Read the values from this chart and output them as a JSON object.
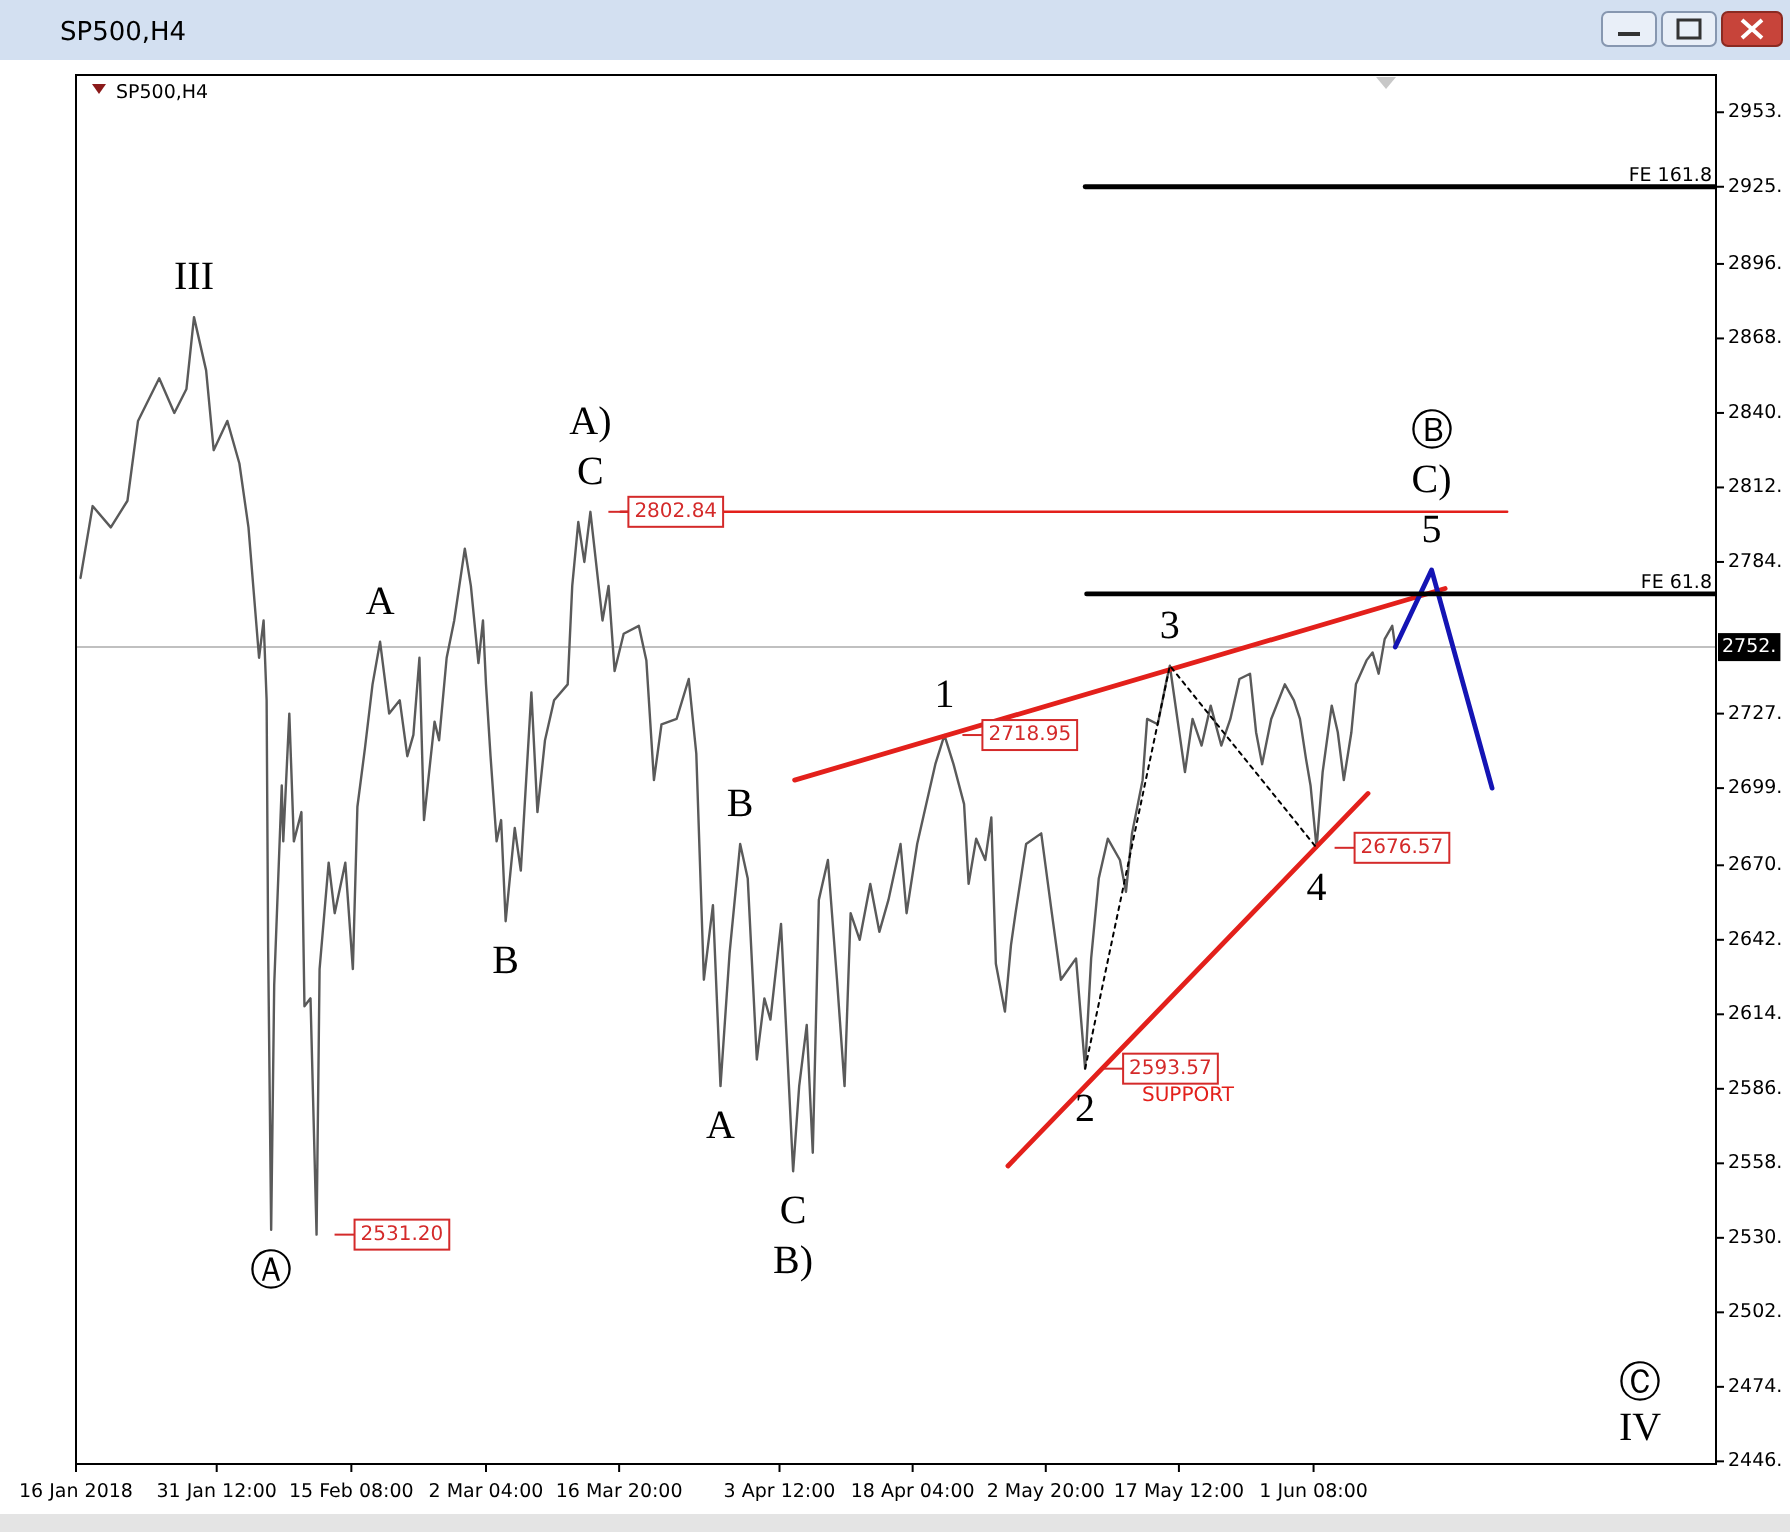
{
  "chart_data": {
    "type": "line",
    "title": "SP500,H4",
    "subtitle": "SP500,H4",
    "legend": "right",
    "xlim": [
      "2018-01-16T00:00",
      "2018-07-15T16:00"
    ],
    "xticks": [
      {
        "value": "2018-01-16T00:00",
        "label": "16 Jan 2018"
      },
      {
        "value": "2018-01-31T12:00",
        "label": "31 Jan 12:00"
      },
      {
        "value": "2018-02-15T08:00",
        "label": "15 Feb 08:00"
      },
      {
        "value": "2018-03-02T04:00",
        "label": "2 Mar 04:00"
      },
      {
        "value": "2018-03-16T20:00",
        "label": "16 Mar 20:00"
      },
      {
        "value": "2018-04-03T12:00",
        "label": "3 Apr 12:00"
      },
      {
        "value": "2018-04-18T04:00",
        "label": "18 Apr 04:00"
      },
      {
        "value": "2018-05-02T20:00",
        "label": "2 May 20:00"
      },
      {
        "value": "2018-05-17T12:00",
        "label": "17 May 12:00"
      },
      {
        "value": "2018-06-01T08:00",
        "label": "1 Jun 08:00"
      }
    ],
    "ylim": [
      2445,
      2967
    ],
    "yticks": [
      {
        "value": 2446,
        "label": "2446."
      },
      {
        "value": 2474,
        "label": "2474."
      },
      {
        "value": 2502,
        "label": "2502."
      },
      {
        "value": 2530,
        "label": "2530."
      },
      {
        "value": 2558,
        "label": "2558."
      },
      {
        "value": 2586,
        "label": "2586."
      },
      {
        "value": 2614,
        "label": "2614."
      },
      {
        "value": 2642,
        "label": "2642."
      },
      {
        "value": 2670,
        "label": "2670."
      },
      {
        "value": 2699,
        "label": "2699."
      },
      {
        "value": 2727,
        "label": "2727."
      },
      {
        "value": 2784,
        "label": "2784."
      },
      {
        "value": 2812,
        "label": "2812."
      },
      {
        "value": 2840,
        "label": "2840."
      },
      {
        "value": 2868,
        "label": "2868."
      },
      {
        "value": 2896,
        "label": "2896."
      },
      {
        "value": 2925,
        "label": "2925."
      },
      {
        "value": 2953,
        "label": "2953."
      }
    ],
    "series": [
      {
        "color": "#5a5a5a",
        "x": [
          "2018-01-16T12:00",
          "2018-01-17T20:00",
          "2018-01-19T20:00",
          "2018-01-21T16:00",
          "2018-01-22T20:00",
          "2018-01-25T04:00",
          "2018-01-26T20:00",
          "2018-01-28T04:00",
          "2018-01-29T00:00",
          "2018-01-30T08:00",
          "2018-01-31T04:00",
          "2018-02-01T16:00",
          "2018-02-03T00:00",
          "2018-02-04T00:00",
          "2018-02-04T20:00",
          "2018-02-05T04:00",
          "2018-02-05T16:00",
          "2018-02-06T00:00",
          "2018-02-06T04:00",
          "2018-02-06T12:00",
          "2018-02-06T20:00",
          "2018-02-07T16:00",
          "2018-02-07T20:00",
          "2018-02-08T12:00",
          "2018-02-09T00:00",
          "2018-02-09T20:00",
          "2018-02-10T04:00",
          "2018-02-10T20:00",
          "2018-02-11T12:00",
          "2018-02-11T20:00",
          "2018-02-12T20:00",
          "2018-02-13T12:00",
          "2018-02-14T16:00",
          "2018-02-15T12:00",
          "2018-02-16T00:00",
          "2018-02-16T20:00",
          "2018-02-17T16:00",
          "2018-02-18T12:00",
          "2018-02-19T12:00",
          "2018-02-20T16:00",
          "2018-02-21T12:00",
          "2018-02-22T04:00",
          "2018-02-22T20:00",
          "2018-02-23T08:00",
          "2018-02-24T12:00",
          "2018-02-25T00:00",
          "2018-02-25T20:00",
          "2018-02-26T16:00",
          "2018-02-27T20:00",
          "2018-02-28T12:00",
          "2018-03-01T08:00",
          "2018-03-01T20:00",
          "2018-03-02T04:00",
          "2018-03-02T16:00",
          "2018-03-03T08:00",
          "2018-03-03T20:00",
          "2018-03-04T08:00",
          "2018-03-05T08:00",
          "2018-03-06T00:00",
          "2018-03-07T04:00",
          "2018-03-07T20:00",
          "2018-03-08T16:00",
          "2018-03-09T16:00",
          "2018-03-11T04:00",
          "2018-03-11T16:00",
          "2018-03-12T08:00",
          "2018-03-13T00:00",
          "2018-03-13T16:00",
          "2018-03-15T00:00",
          "2018-03-15T16:00",
          "2018-03-16T08:00",
          "2018-03-17T08:00",
          "2018-03-19T00:00",
          "2018-03-19T20:00",
          "2018-03-20T16:00",
          "2018-03-21T12:00",
          "2018-03-23T04:00",
          "2018-03-24T12:00",
          "2018-03-25T08:00",
          "2018-03-26T04:00",
          "2018-03-27T04:00",
          "2018-03-28T00:00",
          "2018-03-29T00:00",
          "2018-03-30T04:00",
          "2018-03-31T00:00",
          "2018-04-01T00:00",
          "2018-04-01T20:00",
          "2018-04-02T12:00",
          "2018-04-03T16:00",
          "2018-04-05T00:00",
          "2018-04-05T16:00",
          "2018-04-06T12:00",
          "2018-04-07T04:00",
          "2018-04-07T20:00",
          "2018-04-08T20:00",
          "2018-04-09T20:00",
          "2018-04-10T16:00",
          "2018-04-11T08:00",
          "2018-04-12T08:00",
          "2018-04-13T12:00",
          "2018-04-14T12:00",
          "2018-04-15T12:00",
          "2018-04-16T20:00",
          "2018-04-17T12:00",
          "2018-04-18T16:00",
          "2018-04-19T16:00",
          "2018-04-20T16:00",
          "2018-04-21T16:00",
          "2018-04-22T16:00",
          "2018-04-23T20:00",
          "2018-04-24T08:00",
          "2018-04-25T04:00",
          "2018-04-26T04:00",
          "2018-04-26T20:00",
          "2018-04-27T08:00",
          "2018-04-28T08:00",
          "2018-04-29T00:00",
          "2018-04-29T12:00",
          "2018-04-30T16:00",
          "2018-05-02T08:00",
          "2018-05-03T12:00",
          "2018-05-04T12:00",
          "2018-05-06T04:00",
          "2018-05-07T04:00",
          "2018-05-07T20:00",
          "2018-05-08T16:00",
          "2018-05-09T16:00",
          "2018-05-11T00:00",
          "2018-05-11T16:00",
          "2018-05-12T08:00",
          "2018-05-13T12:00",
          "2018-05-14T00:00",
          "2018-05-15T04:00",
          "2018-05-16T04:00",
          "2018-05-16T12:00",
          "2018-05-18T04:00",
          "2018-05-19T00:00",
          "2018-05-20T00:00",
          "2018-05-21T00:00",
          "2018-05-22T04:00",
          "2018-05-23T04:00",
          "2018-05-24T04:00",
          "2018-05-25T08:00",
          "2018-05-26T00:00",
          "2018-05-26T16:00",
          "2018-05-27T16:00",
          "2018-05-29T04:00",
          "2018-05-30T04:00",
          "2018-05-30T20:00",
          "2018-05-31T12:00",
          "2018-06-01T00:00",
          "2018-06-01T16:00",
          "2018-06-02T08:00",
          "2018-06-03T08:00",
          "2018-06-04T00:00",
          "2018-06-04T16:00",
          "2018-06-05T12:00",
          "2018-06-06T00:00",
          "2018-06-07T04:00",
          "2018-06-07T20:00",
          "2018-06-08T12:00",
          "2018-06-09T04:00",
          "2018-06-10T00:00",
          "2018-06-10T08:00"
        ],
        "values": [
          2778,
          2805,
          2797,
          2807,
          2837,
          2853,
          2840,
          2849,
          2876,
          2856,
          2826,
          2837,
          2821,
          2797,
          2762,
          2748,
          2762,
          2732,
          2639,
          2533,
          2625,
          2700,
          2679,
          2727,
          2679,
          2690,
          2617,
          2620,
          2531.2,
          2631,
          2671,
          2652,
          2671,
          2631,
          2692,
          2714,
          2738,
          2754,
          2727,
          2732,
          2711,
          2719,
          2748,
          2687,
          2724,
          2717,
          2748,
          2762,
          2789,
          2775,
          2746,
          2762,
          2738,
          2711,
          2679,
          2687,
          2649,
          2684,
          2668,
          2735,
          2690,
          2717,
          2732,
          2738,
          2775,
          2799,
          2784,
          2802.84,
          2762,
          2775,
          2743,
          2757,
          2760,
          2747,
          2702,
          2723,
          2725,
          2740,
          2712,
          2627,
          2655,
          2587,
          2637,
          2678,
          2665,
          2597,
          2620,
          2612,
          2648,
          2555,
          2587,
          2610,
          2562,
          2657,
          2672,
          2627,
          2587,
          2652,
          2642,
          2663,
          2645,
          2657,
          2678,
          2652,
          2678,
          2693,
          2708,
          2718.95,
          2708,
          2693,
          2663,
          2680,
          2672,
          2688,
          2633,
          2615,
          2640,
          2652,
          2678,
          2682,
          2652,
          2627,
          2635,
          2593.57,
          2635,
          2665,
          2680,
          2672,
          2660,
          2682,
          2702,
          2725,
          2723,
          2740,
          2745,
          2705,
          2725,
          2715,
          2730,
          2715,
          2725,
          2740,
          2742,
          2720,
          2708,
          2725,
          2738,
          2732,
          2725,
          2710,
          2700,
          2676.57,
          2705,
          2730,
          2720,
          2702,
          2720,
          2738,
          2747,
          2750,
          2742,
          2755,
          2760,
          2752
        ],
        "value_labels": [
          null,
          null,
          null,
          null,
          null,
          null,
          null,
          null,
          null,
          null,
          null,
          null,
          null,
          null,
          null,
          null,
          null,
          null,
          null,
          null,
          null,
          null,
          null,
          null,
          null,
          null,
          null,
          null,
          "2531.20",
          null,
          null,
          null,
          null,
          null,
          null,
          null,
          null,
          null,
          null,
          null,
          null,
          null,
          null,
          null,
          null,
          null,
          null,
          null,
          null,
          null,
          null,
          null,
          null,
          null,
          null,
          null,
          null,
          null,
          null,
          null,
          null,
          null,
          null,
          null,
          null,
          null,
          null,
          "2802.84",
          null,
          null,
          null,
          null,
          null,
          null,
          null,
          null,
          null,
          null,
          null,
          null,
          null,
          null,
          null,
          null,
          null,
          null,
          null,
          null,
          null,
          null,
          null,
          null,
          null,
          null,
          null,
          null,
          null,
          null,
          null,
          null,
          null,
          null,
          null,
          null,
          null,
          null,
          null,
          "2718.95",
          null,
          null,
          null,
          null,
          null,
          null,
          null,
          null,
          null,
          null,
          null,
          null,
          null,
          null,
          null,
          "2593.57",
          null,
          null,
          null,
          null,
          null,
          null,
          null,
          null,
          null,
          null,
          null,
          null,
          null,
          null,
          null,
          null,
          null,
          null,
          null,
          null,
          null,
          null,
          null,
          null,
          null,
          null,
          null,
          "2676.57",
          null,
          null,
          null,
          null,
          null,
          null,
          null,
          null,
          null,
          null,
          null,
          null
        ]
      },
      {
        "color": "#e3201b",
        "x": [
          "2018-04-05T04:00",
          "2018-06-15T20:00"
        ],
        "values": [
          2702,
          2774
        ]
      },
      {
        "name": "SUPPORT",
        "color": "#e3201b",
        "x": [
          "2018-04-28T16:00",
          "2018-06-07T08:00"
        ],
        "values": [
          2557,
          2697
        ]
      },
      {
        "color": "#000000",
        "line_style": "dotted",
        "x": [
          "2018-05-07T04:00",
          "2018-05-16T12:00",
          "2018-06-01T16:00"
        ],
        "values": [
          2593.57,
          2745,
          2676.57
        ]
      },
      {
        "color": "#1414b4",
        "x": [
          "2018-06-10T08:00",
          "2018-06-14T08:00",
          "2018-06-21T00:00"
        ],
        "values": [
          2752,
          2781,
          2699
        ]
      },
      {
        "name": "FE 161.8",
        "color": "#000000",
        "x": [
          "2018-05-07T04:00",
          "2018-07-15T16:00"
        ],
        "values": [
          2925,
          2925
        ]
      },
      {
        "name": "FE 61.8",
        "color": "#000000",
        "x": [
          "2018-05-07T08:00",
          "2018-07-15T16:00"
        ],
        "values": [
          2772,
          2772
        ]
      },
      {
        "color": "#e3201b",
        "x": [
          "2018-03-17T00:00",
          "2018-06-22T16:00"
        ],
        "values": [
          2802.84,
          2802.84
        ]
      }
    ],
    "ref_lines": [
      {
        "axis": "y",
        "value": 2752,
        "label": "2752.",
        "color": "#c0c0c0"
      }
    ],
    "annotations": [
      {
        "text": "III",
        "x": "2018-01-29T00:00",
        "y": 2876
      },
      {
        "text": "Ⓐ",
        "x": "2018-02-06T12:00",
        "y": 2533
      },
      {
        "text": "A",
        "x": "2018-02-18T12:00",
        "y": 2754
      },
      {
        "text": "B",
        "x": "2018-03-04T08:00",
        "y": 2649
      },
      {
        "text": "C",
        "x": "2018-03-13T16:00",
        "y": 2802.84
      },
      {
        "text": "A)",
        "x": "2018-03-13T16:00",
        "y": 2802.84
      },
      {
        "text": "B",
        "x": "2018-03-30T04:00",
        "y": 2678
      },
      {
        "text": "A",
        "x": "2018-03-28T00:00",
        "y": 2587
      },
      {
        "text": "C",
        "x": "2018-04-05T00:00",
        "y": 2555
      },
      {
        "text": "B)",
        "x": "2018-04-05T00:00",
        "y": 2555
      },
      {
        "text": "1",
        "x": "2018-04-21T16:00",
        "y": 2718.95
      },
      {
        "text": "2",
        "x": "2018-05-07T04:00",
        "y": 2593.57
      },
      {
        "text": "3",
        "x": "2018-05-16T12:00",
        "y": 2745
      },
      {
        "text": "4",
        "x": "2018-06-01T16:00",
        "y": 2676.57
      },
      {
        "text": "5",
        "x": "2018-06-14T08:00",
        "y": 2781
      },
      {
        "text": "C)",
        "x": "2018-06-14T08:00",
        "y": 2781
      },
      {
        "text": "Ⓑ",
        "x": "2018-06-14T08:00",
        "y": 2781
      },
      "Ⓒ",
      "IV"
    ]
  }
}
